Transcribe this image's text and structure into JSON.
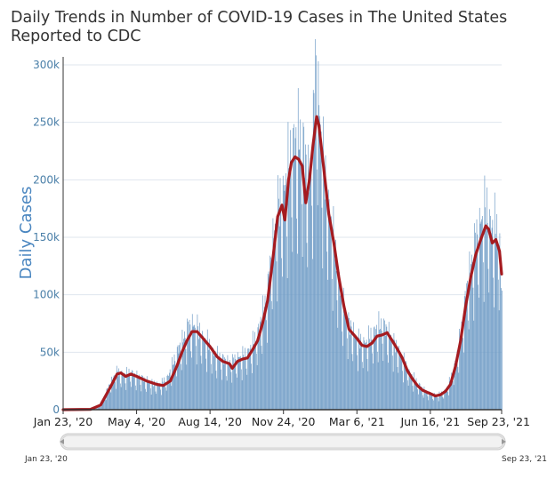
{
  "chart_data": {
    "type": "bar",
    "title": "Daily Trends in Number of COVID-19 Cases in The United States Reported to CDC",
    "ylabel": "Daily Cases",
    "xlabel": "",
    "ylim": [
      0,
      300000
    ],
    "y_ticks": [
      "0",
      "50k",
      "100k",
      "150k",
      "200k",
      "250k",
      "300k"
    ],
    "y_tick_values": [
      0,
      50000,
      100000,
      150000,
      200000,
      250000,
      300000
    ],
    "x_ticks": [
      "Jan 23, '20",
      "May 4, '20",
      "Aug 14, '20",
      "Nov 24, '20",
      "Mar 6, '21",
      "Jun 16, '21",
      "Sep 23, '21"
    ],
    "x_tick_dates": [
      "2020-01-23",
      "2020-05-04",
      "2020-08-14",
      "2020-11-24",
      "2021-03-06",
      "2021-06-16",
      "2021-09-23"
    ],
    "grid": true,
    "series": [
      {
        "type": "bar",
        "color": "#6f9cc6",
        "points": [
          [
            "2020-01-23",
            0
          ],
          [
            "2020-03-01",
            200
          ],
          [
            "2020-03-10",
            1200
          ],
          [
            "2020-03-15",
            4000
          ],
          [
            "2020-03-22",
            14000
          ],
          [
            "2020-03-29",
            23000
          ],
          [
            "2020-04-05",
            31000
          ],
          [
            "2020-04-12",
            30000
          ],
          [
            "2020-04-19",
            29000
          ],
          [
            "2020-04-26",
            31000
          ],
          [
            "2020-05-04",
            27000
          ],
          [
            "2020-05-11",
            26000
          ],
          [
            "2020-05-18",
            24000
          ],
          [
            "2020-05-25",
            22000
          ],
          [
            "2020-06-01",
            21000
          ],
          [
            "2020-06-08",
            22000
          ],
          [
            "2020-06-15",
            26000
          ],
          [
            "2020-06-22",
            36000
          ],
          [
            "2020-06-29",
            48000
          ],
          [
            "2020-07-06",
            56000
          ],
          [
            "2020-07-13",
            67000
          ],
          [
            "2020-07-20",
            70000
          ],
          [
            "2020-07-27",
            67000
          ],
          [
            "2020-08-03",
            60000
          ],
          [
            "2020-08-10",
            55000
          ],
          [
            "2020-08-17",
            48000
          ],
          [
            "2020-08-24",
            44000
          ],
          [
            "2020-08-31",
            42000
          ],
          [
            "2020-09-07",
            39000
          ],
          [
            "2020-09-14",
            40000
          ],
          [
            "2020-09-21",
            43000
          ],
          [
            "2020-09-28",
            44000
          ],
          [
            "2020-10-05",
            47000
          ],
          [
            "2020-10-12",
            54000
          ],
          [
            "2020-10-19",
            63000
          ],
          [
            "2020-10-26",
            80000
          ],
          [
            "2020-11-02",
            100000
          ],
          [
            "2020-11-09",
            140000
          ],
          [
            "2020-11-16",
            165000
          ],
          [
            "2020-11-24",
            180000
          ],
          [
            "2020-12-01",
            200000
          ],
          [
            "2020-12-08",
            220000
          ],
          [
            "2020-12-15",
            222000
          ],
          [
            "2020-12-22",
            215000
          ],
          [
            "2020-12-29",
            185000
          ],
          [
            "2021-01-04",
            230000
          ],
          [
            "2021-01-08",
            292000
          ],
          [
            "2021-01-12",
            250000
          ],
          [
            "2021-01-19",
            195000
          ],
          [
            "2021-01-26",
            165000
          ],
          [
            "2021-02-02",
            135000
          ],
          [
            "2021-02-09",
            105000
          ],
          [
            "2021-02-16",
            82000
          ],
          [
            "2021-02-23",
            70000
          ],
          [
            "2021-03-02",
            63000
          ],
          [
            "2021-03-06",
            58000
          ],
          [
            "2021-03-13",
            55000
          ],
          [
            "2021-03-20",
            56000
          ],
          [
            "2021-03-27",
            62000
          ],
          [
            "2021-04-03",
            67000
          ],
          [
            "2021-04-10",
            70000
          ],
          [
            "2021-04-17",
            65000
          ],
          [
            "2021-04-24",
            57000
          ],
          [
            "2021-05-01",
            50000
          ],
          [
            "2021-05-08",
            42000
          ],
          [
            "2021-05-15",
            33000
          ],
          [
            "2021-05-22",
            27000
          ],
          [
            "2021-05-29",
            22000
          ],
          [
            "2021-06-05",
            17000
          ],
          [
            "2021-06-12",
            14000
          ],
          [
            "2021-06-16",
            13000
          ],
          [
            "2021-06-23",
            12000
          ],
          [
            "2021-06-30",
            13000
          ],
          [
            "2021-07-07",
            16000
          ],
          [
            "2021-07-14",
            25000
          ],
          [
            "2021-07-21",
            40000
          ],
          [
            "2021-07-28",
            62000
          ],
          [
            "2021-08-04",
            95000
          ],
          [
            "2021-08-11",
            120000
          ],
          [
            "2021-08-18",
            140000
          ],
          [
            "2021-08-25",
            155000
          ],
          [
            "2021-09-01",
            165000
          ],
          [
            "2021-09-08",
            150000
          ],
          [
            "2021-09-15",
            148000
          ],
          [
            "2021-09-20",
            135000
          ],
          [
            "2021-09-23",
            95000
          ]
        ]
      },
      {
        "type": "line",
        "color": "#a51b20",
        "points": [
          [
            "2020-01-23",
            0
          ],
          [
            "2020-03-01",
            300
          ],
          [
            "2020-03-15",
            4000
          ],
          [
            "2020-03-29",
            20000
          ],
          [
            "2020-04-07",
            31000
          ],
          [
            "2020-04-12",
            32000
          ],
          [
            "2020-04-19",
            29000
          ],
          [
            "2020-04-26",
            31000
          ],
          [
            "2020-05-04",
            29000
          ],
          [
            "2020-05-18",
            25000
          ],
          [
            "2020-06-01",
            22000
          ],
          [
            "2020-06-10",
            21000
          ],
          [
            "2020-06-20",
            25000
          ],
          [
            "2020-06-29",
            38000
          ],
          [
            "2020-07-06",
            50000
          ],
          [
            "2020-07-13",
            60000
          ],
          [
            "2020-07-20",
            68000
          ],
          [
            "2020-07-27",
            68000
          ],
          [
            "2020-08-03",
            63000
          ],
          [
            "2020-08-14",
            55000
          ],
          [
            "2020-08-24",
            46000
          ],
          [
            "2020-09-01",
            42000
          ],
          [
            "2020-09-10",
            40000
          ],
          [
            "2020-09-14",
            36000
          ],
          [
            "2020-09-21",
            42000
          ],
          [
            "2020-09-28",
            44000
          ],
          [
            "2020-10-05",
            45000
          ],
          [
            "2020-10-12",
            52000
          ],
          [
            "2020-10-19",
            60000
          ],
          [
            "2020-10-26",
            75000
          ],
          [
            "2020-11-02",
            95000
          ],
          [
            "2020-11-09",
            130000
          ],
          [
            "2020-11-16",
            168000
          ],
          [
            "2020-11-22",
            178000
          ],
          [
            "2020-11-26",
            165000
          ],
          [
            "2020-12-01",
            200000
          ],
          [
            "2020-12-05",
            215000
          ],
          [
            "2020-12-10",
            220000
          ],
          [
            "2020-12-15",
            218000
          ],
          [
            "2020-12-20",
            212000
          ],
          [
            "2020-12-25",
            180000
          ],
          [
            "2020-12-30",
            200000
          ],
          [
            "2021-01-04",
            230000
          ],
          [
            "2021-01-09",
            255000
          ],
          [
            "2021-01-12",
            248000
          ],
          [
            "2021-01-19",
            210000
          ],
          [
            "2021-01-26",
            170000
          ],
          [
            "2021-02-02",
            145000
          ],
          [
            "2021-02-09",
            115000
          ],
          [
            "2021-02-16",
            90000
          ],
          [
            "2021-02-23",
            70000
          ],
          [
            "2021-03-02",
            65000
          ],
          [
            "2021-03-06",
            62000
          ],
          [
            "2021-03-13",
            56000
          ],
          [
            "2021-03-20",
            55000
          ],
          [
            "2021-03-27",
            58000
          ],
          [
            "2021-04-03",
            64000
          ],
          [
            "2021-04-10",
            65000
          ],
          [
            "2021-04-17",
            67000
          ],
          [
            "2021-04-24",
            60000
          ],
          [
            "2021-05-01",
            53000
          ],
          [
            "2021-05-08",
            45000
          ],
          [
            "2021-05-15",
            34000
          ],
          [
            "2021-05-22",
            27000
          ],
          [
            "2021-05-29",
            21000
          ],
          [
            "2021-06-05",
            17000
          ],
          [
            "2021-06-12",
            15000
          ],
          [
            "2021-06-16",
            14000
          ],
          [
            "2021-06-23",
            12000
          ],
          [
            "2021-06-30",
            13000
          ],
          [
            "2021-07-07",
            16000
          ],
          [
            "2021-07-14",
            22000
          ],
          [
            "2021-07-21",
            38000
          ],
          [
            "2021-07-28",
            60000
          ],
          [
            "2021-08-04",
            90000
          ],
          [
            "2021-08-11",
            115000
          ],
          [
            "2021-08-18",
            135000
          ],
          [
            "2021-08-25",
            148000
          ],
          [
            "2021-09-01",
            160000
          ],
          [
            "2021-09-05",
            157000
          ],
          [
            "2021-09-10",
            145000
          ],
          [
            "2021-09-15",
            148000
          ],
          [
            "2021-09-20",
            138000
          ],
          [
            "2021-09-23",
            118000
          ]
        ]
      }
    ]
  },
  "navigator": {
    "start_label": "Jan 23, '20",
    "end_label": "Sep 23, '21"
  },
  "colors": {
    "bar": "#6f9cc6",
    "line": "#a51b20",
    "grid": "#dfe6ee",
    "tick_y": "#4a7fa8",
    "ylabel": "#4a86c0"
  }
}
